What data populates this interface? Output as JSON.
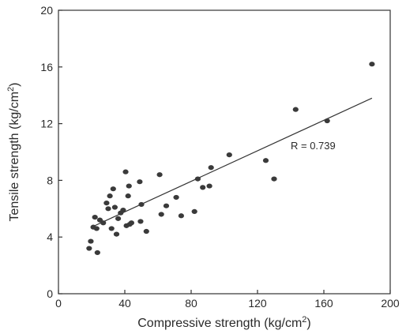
{
  "chart_data": {
    "type": "scatter",
    "title": "",
    "xlabel": "Compressive strength (kg/cm",
    "xlabel_sup": "2",
    "xlabel_end": ")",
    "ylabel": "Tensile strength (kg/cm",
    "ylabel_sup": "2",
    "ylabel_end": ")",
    "xlim": [
      0,
      200
    ],
    "ylim": [
      0,
      20
    ],
    "xticks": [
      0,
      40,
      80,
      120,
      160,
      200
    ],
    "yticks": [
      0,
      4,
      8,
      12,
      16,
      20
    ],
    "xtick_labels": [
      "0",
      "40",
      "80",
      "120",
      "160",
      "200"
    ],
    "ytick_labels": [
      "0",
      "4",
      "8",
      "12",
      "16",
      "20"
    ],
    "grid": false,
    "annotation": "R = 0.739",
    "trendline": {
      "x": [
        20,
        189
      ],
      "y": [
        4.7,
        13.8
      ]
    },
    "points": [
      {
        "x": 18.5,
        "y": 3.2
      },
      {
        "x": 19.5,
        "y": 3.7
      },
      {
        "x": 21,
        "y": 4.7
      },
      {
        "x": 22,
        "y": 5.4
      },
      {
        "x": 23,
        "y": 4.6
      },
      {
        "x": 23.5,
        "y": 2.9
      },
      {
        "x": 25,
        "y": 5.2
      },
      {
        "x": 27,
        "y": 5.0
      },
      {
        "x": 29,
        "y": 6.4
      },
      {
        "x": 30,
        "y": 6.0
      },
      {
        "x": 31,
        "y": 6.9
      },
      {
        "x": 32,
        "y": 4.6
      },
      {
        "x": 33,
        "y": 7.4
      },
      {
        "x": 34,
        "y": 6.1
      },
      {
        "x": 35,
        "y": 4.2
      },
      {
        "x": 36,
        "y": 5.3
      },
      {
        "x": 37.5,
        "y": 5.7
      },
      {
        "x": 39,
        "y": 5.9
      },
      {
        "x": 40.5,
        "y": 8.6
      },
      {
        "x": 41,
        "y": 4.8
      },
      {
        "x": 42,
        "y": 6.9
      },
      {
        "x": 42.5,
        "y": 7.6
      },
      {
        "x": 43,
        "y": 4.9
      },
      {
        "x": 44,
        "y": 5.0
      },
      {
        "x": 49,
        "y": 7.9
      },
      {
        "x": 49.5,
        "y": 5.1
      },
      {
        "x": 50,
        "y": 6.3
      },
      {
        "x": 53,
        "y": 4.4
      },
      {
        "x": 61,
        "y": 8.4
      },
      {
        "x": 62,
        "y": 5.6
      },
      {
        "x": 65,
        "y": 6.2
      },
      {
        "x": 71,
        "y": 6.8
      },
      {
        "x": 74,
        "y": 5.5
      },
      {
        "x": 82,
        "y": 5.8
      },
      {
        "x": 84,
        "y": 8.1
      },
      {
        "x": 87,
        "y": 7.5
      },
      {
        "x": 91,
        "y": 7.6
      },
      {
        "x": 92,
        "y": 8.9
      },
      {
        "x": 103,
        "y": 9.8
      },
      {
        "x": 125,
        "y": 9.4
      },
      {
        "x": 130,
        "y": 8.1
      },
      {
        "x": 143,
        "y": 13.0
      },
      {
        "x": 162,
        "y": 12.2
      },
      {
        "x": 189,
        "y": 16.2
      }
    ]
  }
}
